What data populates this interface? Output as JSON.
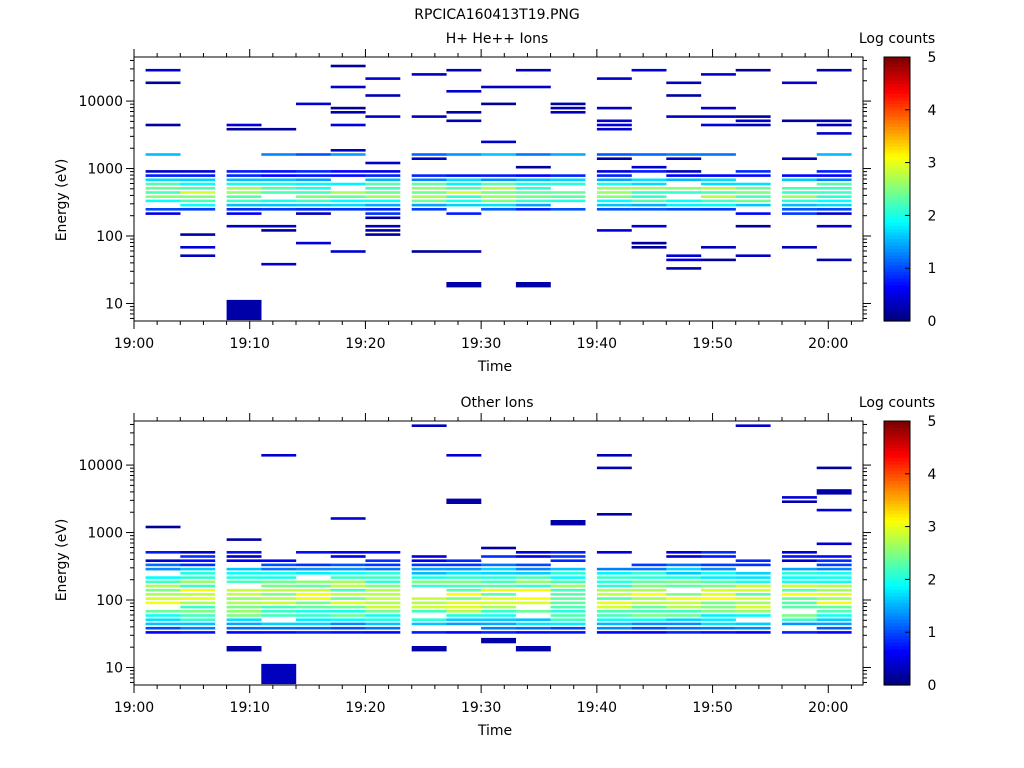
{
  "figure_title": "RPCICA160413T19.PNG",
  "chart_data": [
    {
      "type": "heatmap",
      "title": "H+ He++ Ions",
      "xlabel": "Time",
      "ylabel": "Energy (eV)",
      "x_ticks": [
        "19:00",
        "19:10",
        "19:20",
        "19:30",
        "19:40",
        "19:50",
        "20:00"
      ],
      "xlim": [
        "19:00",
        "20:03"
      ],
      "y_scale": "log",
      "y_ticks": [
        "10",
        "100",
        "1000",
        "10000"
      ],
      "ylim": [
        5.5,
        45000
      ],
      "colorbar": {
        "label": "Log counts",
        "ticks": [
          "0",
          "1",
          "2",
          "3",
          "4",
          "5"
        ],
        "range": [
          0,
          5
        ]
      },
      "time_bins": [
        "19:01",
        "19:04",
        "19:08",
        "19:11",
        "19:14",
        "19:17",
        "19:20",
        "19:24",
        "19:27",
        "19:30",
        "19:33",
        "19:36",
        "19:40",
        "19:43",
        "19:46",
        "19:49",
        "19:52",
        "19:56",
        "19:59"
      ],
      "core": {
        "band_eV": [
          220,
          700
        ],
        "peak_log_counts": 2.8,
        "sub_band_eV": [
          1300,
          1600
        ],
        "sub_peak_log_counts": 1.6
      },
      "isolated_bins_eV": [
        {
          "time": "19:08",
          "energy_eV": 8,
          "log_counts": 0.2
        },
        {
          "time": "19:27",
          "energy_eV": 19,
          "log_counts": 0.2
        },
        {
          "time": "19:33",
          "energy_eV": 19,
          "log_counts": 0.2
        }
      ]
    },
    {
      "type": "heatmap",
      "title": "Other Ions",
      "xlabel": "Time",
      "ylabel": "Energy (eV)",
      "x_ticks": [
        "19:00",
        "19:10",
        "19:20",
        "19:30",
        "19:40",
        "19:50",
        "20:00"
      ],
      "xlim": [
        "19:00",
        "20:03"
      ],
      "y_scale": "log",
      "y_ticks": [
        "10",
        "100",
        "1000",
        "10000"
      ],
      "ylim": [
        5.5,
        45000
      ],
      "colorbar": {
        "label": "Log counts",
        "ticks": [
          "0",
          "1",
          "2",
          "3",
          "4",
          "5"
        ],
        "range": [
          0,
          5
        ]
      },
      "time_bins": [
        "19:01",
        "19:04",
        "19:08",
        "19:11",
        "19:14",
        "19:17",
        "19:20",
        "19:24",
        "19:27",
        "19:30",
        "19:33",
        "19:36",
        "19:40",
        "19:43",
        "19:46",
        "19:49",
        "19:52",
        "19:56",
        "19:59"
      ],
      "core": {
        "band_eV": [
          50,
          500
        ],
        "peak_log_counts": 3.0,
        "peak_eV": 100
      },
      "isolated_bins_eV": [
        {
          "time": "19:08",
          "energy_eV": 19,
          "log_counts": 0.2
        },
        {
          "time": "19:11",
          "energy_eV": 8,
          "log_counts": 0.3
        },
        {
          "time": "19:24",
          "energy_eV": 19,
          "log_counts": 0.2
        },
        {
          "time": "19:27",
          "energy_eV": 2900,
          "log_counts": 0.2
        },
        {
          "time": "19:30",
          "energy_eV": 25,
          "log_counts": 0.2
        },
        {
          "time": "19:33",
          "energy_eV": 19,
          "log_counts": 0.2
        },
        {
          "time": "19:36",
          "energy_eV": 1400,
          "log_counts": 0.2
        },
        {
          "time": "19:59",
          "energy_eV": 4000,
          "log_counts": 0.2
        }
      ]
    }
  ]
}
